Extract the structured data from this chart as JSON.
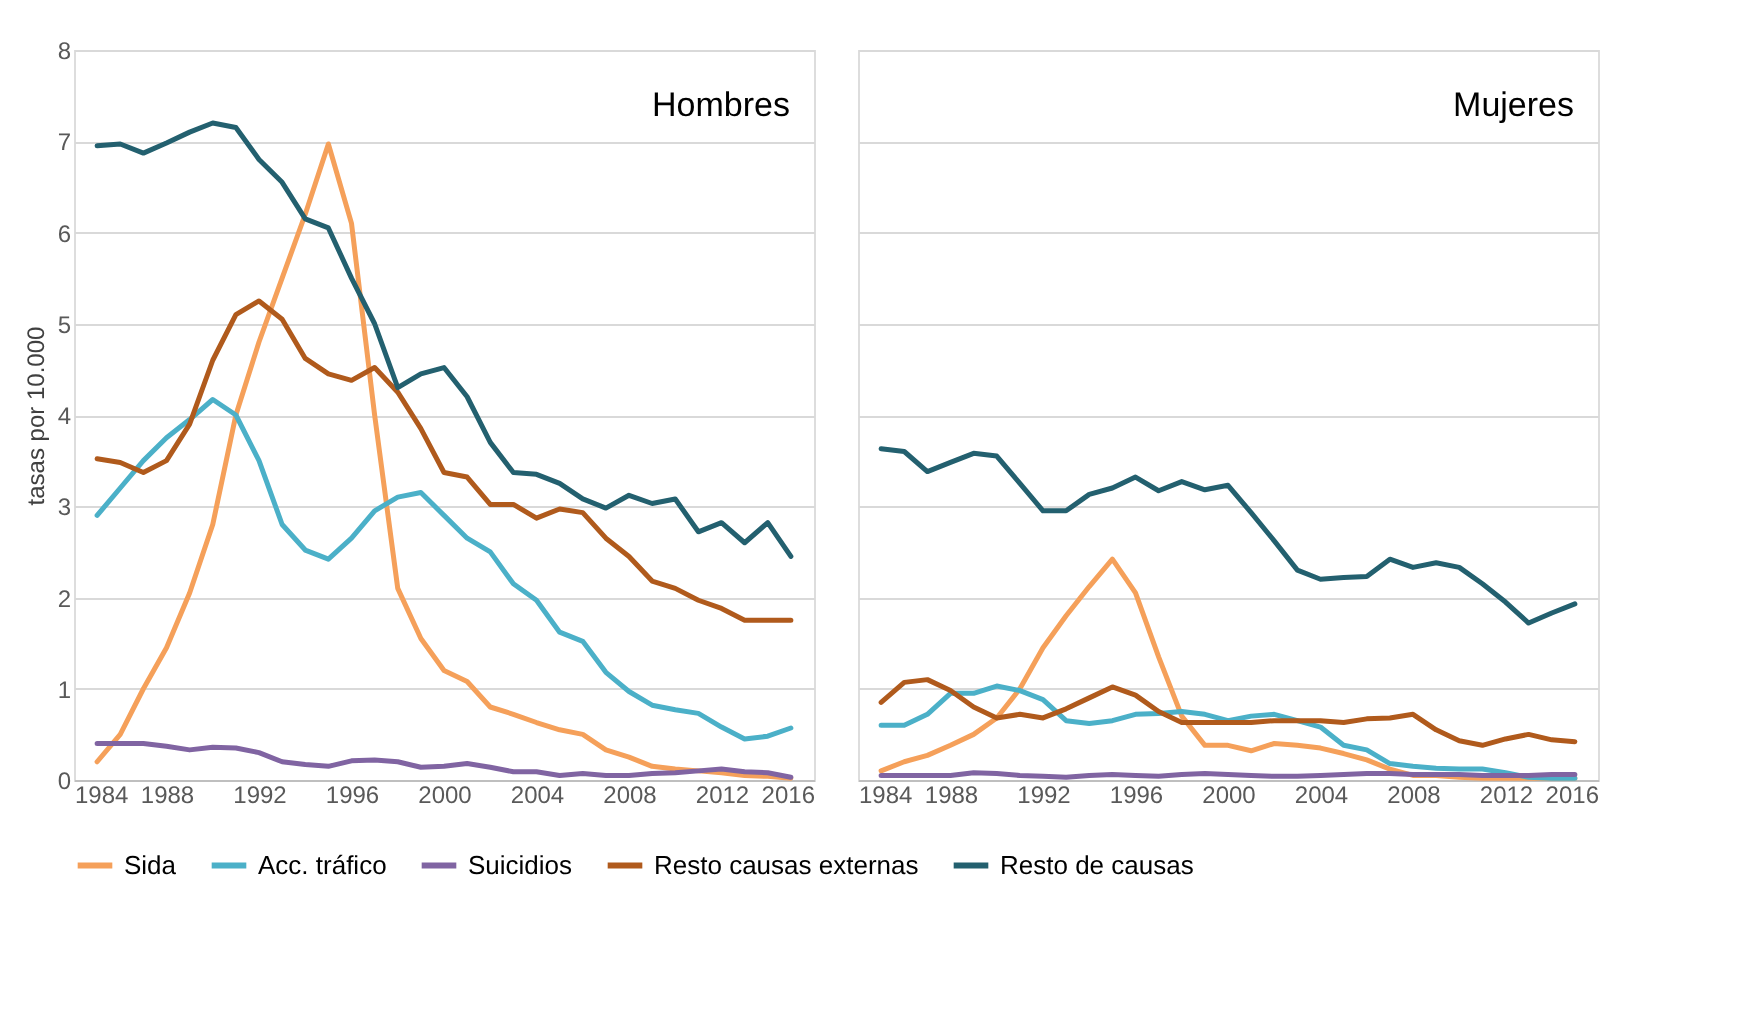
{
  "chart_data": [
    {
      "type": "line",
      "title": "Hombres",
      "ylabel": "tasas por 10.000",
      "xlim": [
        1984,
        2016
      ],
      "xticks": [
        1984,
        1988,
        1992,
        1996,
        2000,
        2004,
        2008,
        2012,
        2016
      ],
      "ylim": [
        0,
        8
      ],
      "yticks": [
        0,
        1,
        2,
        3,
        4,
        5,
        6,
        7,
        8
      ],
      "grid": "y",
      "legend": "bottom",
      "marker": "none",
      "line_style": "solid",
      "x": [
        1985,
        1986,
        1987,
        1988,
        1989,
        1990,
        1991,
        1992,
        1993,
        1994,
        1995,
        1996,
        1997,
        1998,
        1999,
        2000,
        2001,
        2002,
        2003,
        2004,
        2005,
        2006,
        2007,
        2008,
        2009,
        2010,
        2011,
        2012,
        2013,
        2014,
        2015
      ],
      "series": [
        {
          "name": "Sida",
          "color": "#f5a05a",
          "values": [
            0.2,
            0.5,
            1.0,
            1.45,
            2.05,
            2.8,
            4.0,
            4.8,
            5.5,
            6.2,
            6.97,
            6.1,
            4.0,
            2.1,
            1.55,
            1.2,
            1.08,
            0.8,
            0.72,
            0.63,
            0.55,
            0.5,
            0.33,
            0.25,
            0.15,
            0.12,
            0.1,
            0.08,
            0.05,
            0.04,
            0.02
          ]
        },
        {
          "name": "Acc. tráfico",
          "color": "#4bb0c8",
          "values": [
            2.9,
            3.2,
            3.5,
            3.75,
            3.95,
            4.17,
            4.0,
            3.5,
            2.8,
            2.52,
            2.42,
            2.65,
            2.95,
            3.1,
            3.15,
            2.9,
            2.65,
            2.5,
            2.15,
            1.97,
            1.62,
            1.52,
            1.18,
            0.97,
            0.82,
            0.77,
            0.73,
            0.58,
            0.45,
            0.48,
            0.57
          ]
        },
        {
          "name": "Suicidios",
          "color": "#8064a2",
          "values": [
            0.4,
            0.4,
            0.4,
            0.37,
            0.33,
            0.36,
            0.35,
            0.3,
            0.2,
            0.17,
            0.15,
            0.21,
            0.22,
            0.2,
            0.14,
            0.15,
            0.18,
            0.14,
            0.09,
            0.09,
            0.05,
            0.07,
            0.05,
            0.05,
            0.07,
            0.08,
            0.1,
            0.12,
            0.09,
            0.08,
            0.03
          ]
        },
        {
          "name": "Resto causas externas",
          "color": "#b05a1c",
          "values": [
            3.52,
            3.48,
            3.37,
            3.5,
            3.9,
            4.6,
            5.1,
            5.25,
            5.05,
            4.62,
            4.45,
            4.38,
            4.52,
            4.25,
            3.85,
            3.37,
            3.32,
            3.02,
            3.02,
            2.87,
            2.97,
            2.93,
            2.65,
            2.45,
            2.18,
            2.1,
            1.97,
            1.88,
            1.75,
            1.75,
            1.75
          ]
        },
        {
          "name": "Resto de causas",
          "color": "#23606f",
          "values": [
            6.95,
            6.97,
            6.87,
            6.98,
            7.1,
            7.2,
            7.15,
            6.8,
            6.55,
            6.15,
            6.05,
            5.5,
            5.0,
            4.3,
            4.45,
            4.52,
            4.2,
            3.7,
            3.37,
            3.35,
            3.25,
            3.08,
            2.98,
            3.12,
            3.03,
            3.08,
            2.72,
            2.82,
            2.6,
            2.82,
            2.45
          ]
        }
      ]
    },
    {
      "type": "line",
      "title": "Mujeres",
      "xlim": [
        1984,
        2016
      ],
      "xticks": [
        1984,
        1988,
        1992,
        1996,
        2000,
        2004,
        2008,
        2012,
        2016
      ],
      "ylim": [
        0,
        8
      ],
      "yticks": [
        0,
        1,
        2,
        3,
        4,
        5,
        6,
        7,
        8
      ],
      "grid": "y",
      "legend": "bottom",
      "marker": "none",
      "line_style": "solid",
      "tick_labels": "x",
      "x": [
        1985,
        1986,
        1987,
        1988,
        1989,
        1990,
        1991,
        1992,
        1993,
        1994,
        1995,
        1996,
        1997,
        1998,
        1999,
        2000,
        2001,
        2002,
        2003,
        2004,
        2005,
        2006,
        2007,
        2008,
        2009,
        2010,
        2011,
        2012,
        2013,
        2014,
        2015
      ],
      "series": [
        {
          "name": "Sida",
          "color": "#f5a05a",
          "values": [
            0.1,
            0.2,
            0.27,
            0.38,
            0.5,
            0.68,
            1.0,
            1.45,
            1.8,
            2.12,
            2.42,
            2.05,
            1.35,
            0.7,
            0.38,
            0.38,
            0.32,
            0.4,
            0.38,
            0.35,
            0.29,
            0.22,
            0.12,
            0.05,
            0.05,
            0.03,
            0.02,
            0.02,
            0.02,
            0.02,
            0.02
          ]
        },
        {
          "name": "Acc. tráfico",
          "color": "#4bb0c8",
          "values": [
            0.6,
            0.6,
            0.72,
            0.95,
            0.95,
            1.03,
            0.98,
            0.88,
            0.65,
            0.62,
            0.65,
            0.72,
            0.73,
            0.75,
            0.72,
            0.65,
            0.7,
            0.72,
            0.65,
            0.58,
            0.38,
            0.33,
            0.18,
            0.15,
            0.13,
            0.12,
            0.12,
            0.08,
            0.03,
            0.02,
            0.02
          ]
        },
        {
          "name": "Suicidios",
          "color": "#8064a2",
          "values": [
            0.05,
            0.05,
            0.05,
            0.05,
            0.08,
            0.07,
            0.05,
            0.04,
            0.03,
            0.05,
            0.06,
            0.05,
            0.04,
            0.06,
            0.07,
            0.06,
            0.05,
            0.04,
            0.04,
            0.05,
            0.06,
            0.07,
            0.07,
            0.06,
            0.06,
            0.06,
            0.05,
            0.05,
            0.05,
            0.06,
            0.06
          ]
        },
        {
          "name": "Resto causas externas",
          "color": "#b05a1c",
          "values": [
            0.85,
            1.07,
            1.1,
            0.98,
            0.8,
            0.68,
            0.72,
            0.68,
            0.78,
            0.9,
            1.02,
            0.93,
            0.75,
            0.63,
            0.63,
            0.63,
            0.63,
            0.65,
            0.65,
            0.65,
            0.63,
            0.67,
            0.68,
            0.72,
            0.55,
            0.43,
            0.38,
            0.45,
            0.5,
            0.44,
            0.42
          ]
        },
        {
          "name": "Resto de causas",
          "color": "#23606f",
          "values": [
            3.63,
            3.6,
            3.38,
            3.48,
            3.58,
            3.55,
            3.25,
            2.95,
            2.95,
            3.13,
            3.2,
            3.32,
            3.17,
            3.27,
            3.18,
            3.23,
            2.93,
            2.62,
            2.3,
            2.2,
            2.22,
            2.23,
            2.42,
            2.33,
            2.38,
            2.33,
            2.15,
            1.95,
            1.72,
            1.83,
            1.93
          ]
        }
      ]
    }
  ]
}
